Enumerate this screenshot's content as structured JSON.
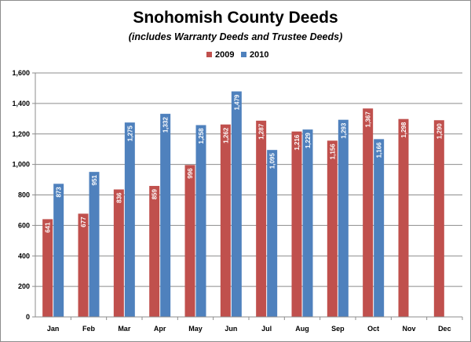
{
  "chart_data": {
    "type": "bar",
    "title": "Snohomish County Deeds",
    "subtitle": "(includes Warranty Deeds and Trustee Deeds)",
    "categories": [
      "Jan",
      "Feb",
      "Mar",
      "Apr",
      "May",
      "Jun",
      "Jul",
      "Aug",
      "Sep",
      "Oct",
      "Nov",
      "Dec"
    ],
    "series": [
      {
        "name": "2009",
        "color": "#c0504d",
        "values": [
          641,
          677,
          836,
          859,
          996,
          1262,
          1287,
          1216,
          1156,
          1367,
          1298,
          1290
        ],
        "labels": [
          "641",
          "677",
          "836",
          "859",
          "996",
          "1,262",
          "1,287",
          "1,216",
          "1,156",
          "1,367",
          "1,298",
          "1,290"
        ]
      },
      {
        "name": "2010",
        "color": "#4f81bd",
        "values": [
          873,
          951,
          1275,
          1332,
          1258,
          1479,
          1095,
          1229,
          1293,
          1166,
          null,
          null
        ],
        "labels": [
          "873",
          "951",
          "1,275",
          "1,332",
          "1,258",
          "1,479",
          "1,095",
          "1,229",
          "1,293",
          "1,166",
          null,
          null
        ]
      }
    ],
    "ylim": [
      0,
      1600
    ],
    "yticks": [
      0,
      200,
      400,
      600,
      800,
      1000,
      1200,
      1400,
      1600
    ],
    "ytick_labels": [
      "0",
      "200",
      "400",
      "600",
      "800",
      "1,000",
      "1,200",
      "1,400",
      "1,600"
    ],
    "grid": true,
    "legend_position": "top"
  }
}
